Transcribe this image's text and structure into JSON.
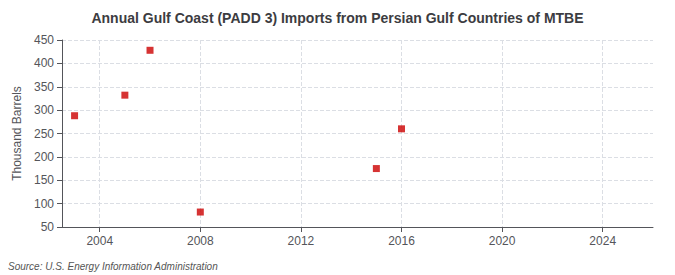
{
  "chart_data": {
    "type": "scatter",
    "title": "Annual Gulf Coast (PADD 3) Imports from Persian Gulf Countries of MTBE",
    "ylabel": "Thousand Barrels",
    "annotations": [
      "Source: U.S. Energy Information Administration"
    ],
    "x": [
      2003,
      2005,
      2006,
      2008,
      2015,
      2016
    ],
    "values": [
      288,
      332,
      428,
      82,
      175,
      260
    ],
    "color": "#cc0000",
    "marker": "square",
    "xlim": [
      2002.5,
      2026
    ],
    "ylim": [
      50,
      450
    ],
    "xticks": [
      2004,
      2008,
      2012,
      2016,
      2020,
      2024
    ],
    "yticks": [
      50,
      100,
      150,
      200,
      250,
      300,
      350,
      400,
      450
    ],
    "grid": true
  }
}
